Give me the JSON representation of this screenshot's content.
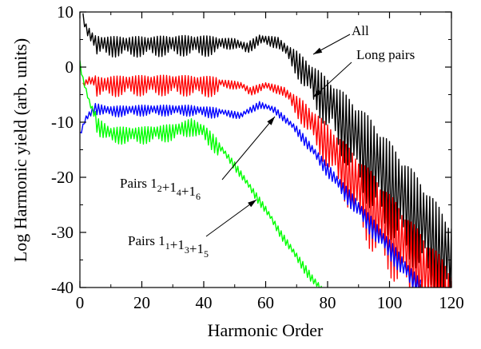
{
  "chart_data": {
    "type": "line",
    "xlabel": "Harmonic Order",
    "ylabel": "Log Harmonic yield (arb. units)",
    "xlim": [
      0,
      120
    ],
    "ylim": [
      -40,
      10
    ],
    "x_ticks": [
      "0",
      "20",
      "40",
      "60",
      "80",
      "100",
      "120"
    ],
    "y_ticks": [
      "10",
      "0",
      "-10",
      "-20",
      "-30",
      "-40"
    ],
    "grid": false,
    "legend": "none",
    "series": [
      {
        "name": "All",
        "color": "#000000",
        "oscillation": [
          1.5,
          3.0,
          1.6,
          14.0,
          120
        ],
        "points": [
          [
            1,
            9.5
          ],
          [
            2,
            7.5
          ],
          [
            5,
            5
          ],
          [
            10,
            4.8
          ],
          [
            20,
            4.8
          ],
          [
            35,
            5
          ],
          [
            50,
            4.8
          ],
          [
            54,
            4
          ],
          [
            58,
            5.5
          ],
          [
            64,
            5
          ],
          [
            70,
            2
          ],
          [
            80,
            -4
          ],
          [
            90,
            -10
          ],
          [
            100,
            -17
          ],
          [
            110,
            -24
          ],
          [
            115,
            -28
          ],
          [
            120,
            -32
          ]
        ]
      },
      {
        "name": "Long pairs",
        "color": "#ff0000",
        "oscillation": [
          1.0,
          3.0,
          1.2,
          12.0,
          120
        ],
        "points": [
          [
            1,
            -3
          ],
          [
            3,
            -2
          ],
          [
            6,
            -2.5
          ],
          [
            15,
            -2.3
          ],
          [
            30,
            -2.2
          ],
          [
            45,
            -2.5
          ],
          [
            52,
            -3
          ],
          [
            55,
            -4
          ],
          [
            60,
            -3
          ],
          [
            66,
            -4
          ],
          [
            72,
            -7
          ],
          [
            80,
            -12
          ],
          [
            90,
            -19
          ],
          [
            100,
            -26
          ],
          [
            110,
            -33
          ],
          [
            116,
            -37
          ],
          [
            120,
            -40
          ]
        ]
      },
      {
        "name": "Pairs 1_2+1_4+1_6",
        "color": "#0000ff",
        "oscillation": [
          1.0,
          1.6,
          1.0,
          3.0,
          110
        ],
        "points": [
          [
            0,
            -12
          ],
          [
            2,
            -9
          ],
          [
            5,
            -7
          ],
          [
            10,
            -7.5
          ],
          [
            20,
            -7.3
          ],
          [
            35,
            -7.3
          ],
          [
            45,
            -7.8
          ],
          [
            52,
            -8.5
          ],
          [
            58,
            -6.5
          ],
          [
            63,
            -7.5
          ],
          [
            70,
            -11
          ],
          [
            80,
            -18
          ],
          [
            90,
            -25
          ],
          [
            100,
            -32
          ],
          [
            106,
            -36.5
          ],
          [
            111,
            -40
          ]
        ]
      },
      {
        "name": "Pairs 1_1+1_3+1_5",
        "color": "#00ff00",
        "oscillation": [
          1.0,
          2.5,
          1.2,
          2.0,
          78
        ],
        "points": [
          [
            0,
            1
          ],
          [
            1,
            -2
          ],
          [
            3,
            -6
          ],
          [
            6,
            -10
          ],
          [
            10,
            -11.5
          ],
          [
            20,
            -11.5
          ],
          [
            30,
            -11
          ],
          [
            36,
            -10
          ],
          [
            40,
            -11
          ],
          [
            45,
            -14
          ],
          [
            50,
            -17.5
          ],
          [
            55,
            -21.5
          ],
          [
            60,
            -25.5
          ],
          [
            65,
            -30
          ],
          [
            70,
            -34
          ],
          [
            75,
            -38
          ],
          [
            78,
            -40
          ]
        ]
      }
    ],
    "annotations": [
      {
        "id": "all",
        "base": "All",
        "subs": []
      },
      {
        "id": "long",
        "base": "Long pairs",
        "subs": []
      },
      {
        "id": "pairs246",
        "base": "Pairs ",
        "subs": [
          [
            "1",
            "2"
          ],
          [
            "1",
            "4"
          ],
          [
            "1",
            "6"
          ]
        ]
      },
      {
        "id": "pairs135",
        "base": "Pairs ",
        "subs": [
          [
            "1",
            "1"
          ],
          [
            "1",
            "3"
          ],
          [
            "1",
            "5"
          ]
        ]
      }
    ]
  }
}
